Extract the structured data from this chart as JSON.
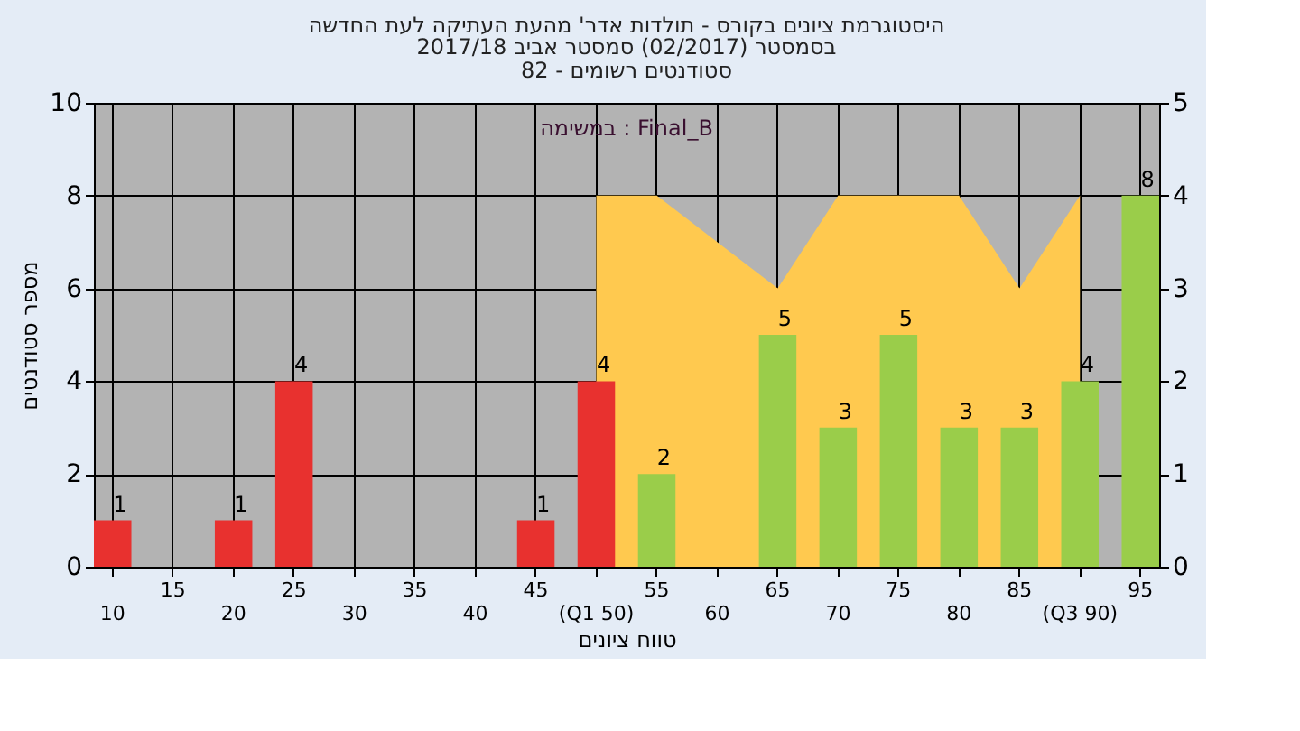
{
  "chart_data": {
    "type": "bar",
    "title": "היסטוגרמת ציונים בקורס - תולדות אדר' מהעת העתיקה לעת החדשה",
    "subtitle": "בסמסטר  (02/2017)  סמסטר אביב 2017/18\nסטודנטים רשומים - 82",
    "xlabel": "טווח ציונים",
    "ylabel": "מספר סטודנטים",
    "annotations": [
      "במשימה : Final_B"
    ],
    "categories": [
      "10",
      "15",
      "20",
      "25",
      "30",
      "35",
      "40",
      "45",
      "(Q1 50)",
      "55",
      "60",
      "65",
      "70",
      "75",
      "80",
      "85",
      "(Q3 90)",
      "95"
    ],
    "series": [
      {
        "colors": [
          "#e8312f",
          "#e8312f",
          "#e8312f",
          "#e8312f",
          "#e8312f",
          "#e8312f",
          "#e8312f",
          "#e8312f",
          "#e8312f",
          "#9acd4a",
          "#9acd4a",
          "#9acd4a",
          "#9acd4a",
          "#9acd4a",
          "#9acd4a",
          "#9acd4a",
          "#9acd4a",
          "#9acd4a"
        ],
        "values": [
          1,
          0,
          1,
          4,
          0,
          0,
          0,
          1,
          4,
          2,
          0,
          5,
          3,
          5,
          3,
          3,
          4,
          8
        ],
        "value_labels": [
          "1",
          null,
          "1",
          "4",
          null,
          null,
          null,
          "1",
          "4",
          "2",
          null,
          "5",
          "3",
          "5",
          "3",
          "3",
          "4",
          "8"
        ]
      },
      {
        "type": "area",
        "axis": "y2",
        "color": "#ffc94f",
        "values": [
          null,
          null,
          null,
          null,
          null,
          null,
          null,
          null,
          4,
          4,
          3.5,
          3,
          4,
          4,
          4,
          3,
          4,
          null
        ]
      }
    ],
    "ylim": [
      0,
      10
    ],
    "yticks": [
      0,
      2,
      4,
      6,
      8,
      10
    ],
    "y2lim": [
      0,
      5
    ],
    "y2ticks": [
      0,
      1,
      2,
      3,
      4,
      5
    ],
    "grid": true
  }
}
